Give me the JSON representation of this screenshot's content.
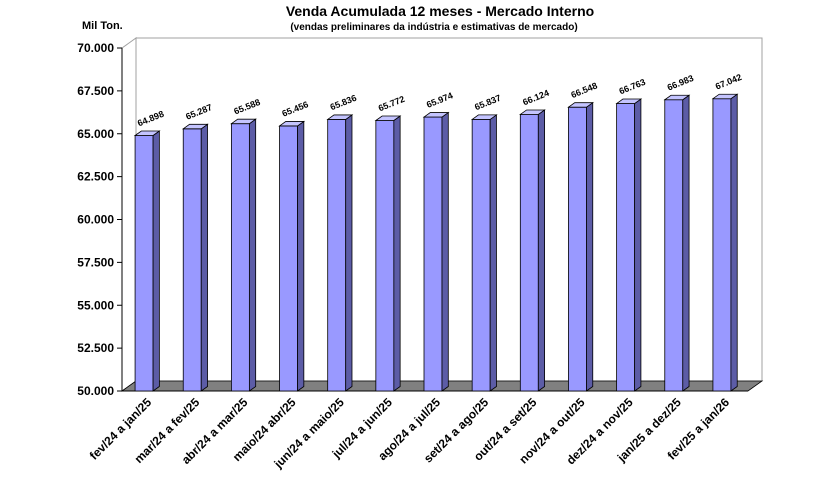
{
  "chart_data": {
    "type": "bar",
    "title": "Venda Acumulada 12 meses -  Mercado Interno",
    "subtitle": "(vendas preliminares da indústria e estimativas de mercado)",
    "ylabel": "Mil Ton.",
    "xlabel": "",
    "ylim": [
      50000,
      70000
    ],
    "yticks": [
      50000,
      52500,
      55000,
      57500,
      60000,
      62500,
      65000,
      67500,
      70000
    ],
    "ytick_labels": [
      "50.000",
      "52.500",
      "55.000",
      "57.500",
      "60.000",
      "62.500",
      "65.000",
      "67.500",
      "70.000"
    ],
    "categories": [
      "fev/24 a jan/25",
      "mar/24 a fev/25",
      "abr/24 a mar/25",
      "maio/24 abr/25",
      "jun/24 a maio/25",
      "jul/24 a jun/25",
      "ago/24 a jul/25",
      "set/24 a ago/25",
      "out/24 a set/25",
      "nov/24 a out/25",
      "dez/24 a nov/25",
      "jan/25 a dez/25",
      "fev/25 a jan/26"
    ],
    "values": [
      64898,
      65287,
      65588,
      65456,
      65836,
      65772,
      65974,
      65837,
      66124,
      66548,
      66763,
      66983,
      67042
    ],
    "data_labels": [
      "64.898",
      "65.287",
      "65.588",
      "65.456",
      "65.836",
      "65.772",
      "65.974",
      "65.837",
      "66.124",
      "66.548",
      "66.763",
      "66.983",
      "67.042"
    ],
    "grid": false,
    "legend": "none",
    "colors": {
      "bar_front": "#9999ff",
      "bar_side": "#5c5ca6",
      "bar_top": "#c4c4ff",
      "floor": "#808080",
      "wall": "#ffffff",
      "wall_border": "#a0a0a0"
    }
  }
}
